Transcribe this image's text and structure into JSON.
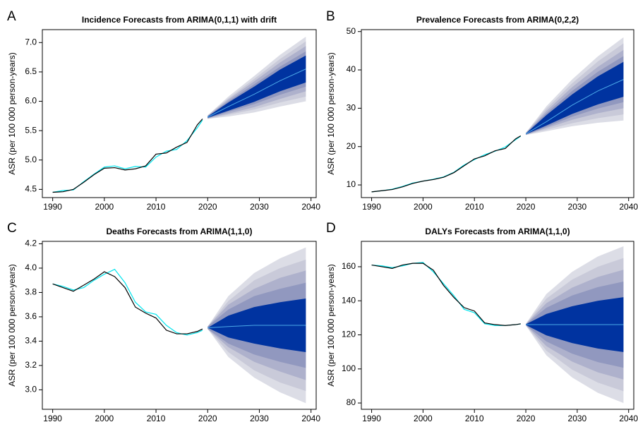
{
  "chart_data": [
    {
      "type": "fan",
      "label": "A",
      "title": "Incidence Forecasts from ARIMA(0,1,1) with drift",
      "y_label": "ASR (per 100 000 person-years)",
      "xlim": [
        1988,
        2041
      ],
      "xticks": [
        1990,
        2000,
        2010,
        2020,
        2030,
        2040
      ],
      "ylim": [
        4.36,
        7.22
      ],
      "yticks": [
        4.5,
        {
          "value": 5,
          "label": "5.0"
        },
        5.5,
        {
          "value": 6,
          "label": "6.0"
        },
        6.5,
        {
          "value": 7,
          "label": "7.0"
        }
      ],
      "x": [
        1990,
        1992,
        1994,
        1996,
        1998,
        2000,
        2002,
        2004,
        2006,
        2008,
        2010,
        2012,
        2014,
        2016,
        2018,
        2019
      ],
      "series": [
        {
          "color": "#000000",
          "values": [
            4.45,
            4.46,
            4.5,
            4.62,
            4.75,
            4.86,
            4.87,
            4.83,
            4.85,
            4.9,
            5.1,
            5.12,
            5.22,
            5.3,
            5.6,
            5.7
          ]
        },
        {
          "color": "#00e5ee",
          "values": [
            4.45,
            4.48,
            4.49,
            4.63,
            4.76,
            4.88,
            4.9,
            4.85,
            4.89,
            4.88,
            5.05,
            5.15,
            5.18,
            5.33,
            5.55,
            5.68
          ]
        }
      ],
      "forecast": {
        "x": [
          2020,
          2024,
          2029,
          2034,
          2039
        ],
        "color": "#4aa8e8",
        "mean": [
          5.73,
          5.91,
          6.12,
          6.35,
          6.55
        ],
        "bands": [
          {
            "color": "#dcdde6",
            "lower": [
              5.7,
              5.74,
              5.81,
              5.91,
              6.0
            ],
            "upper": [
              5.76,
              6.08,
              6.43,
              6.79,
              7.1
            ]
          },
          {
            "color": "#c9cad9",
            "lower": [
              5.7,
              5.77,
              5.86,
              5.98,
              6.08
            ],
            "upper": [
              5.76,
              6.05,
              6.38,
              6.72,
              7.02
            ]
          },
          {
            "color": "#aeb1cc",
            "lower": [
              5.71,
              5.79,
              5.9,
              6.04,
              6.17
            ],
            "upper": [
              5.75,
              6.03,
              6.34,
              6.66,
              6.94
            ]
          },
          {
            "color": "#9198bf",
            "lower": [
              5.71,
              5.82,
              5.95,
              6.11,
              6.25
            ],
            "upper": [
              5.75,
              6.0,
              6.29,
              6.59,
              6.85
            ]
          },
          {
            "color": "#0033a0",
            "lower": [
              5.72,
              5.84,
              5.99,
              6.17,
              6.32
            ],
            "upper": [
              5.74,
              5.98,
              6.25,
              6.54,
              6.78
            ]
          }
        ]
      }
    },
    {
      "type": "fan",
      "label": "B",
      "title": "Prevalence Forecasts from ARIMA(0,2,2)",
      "y_label": "ASR (per 100 000 person-years)",
      "xlim": [
        1988,
        2041
      ],
      "xticks": [
        1990,
        2000,
        2010,
        2020,
        2030,
        2040
      ],
      "ylim": [
        6.7,
        50.5
      ],
      "yticks": [
        10,
        20,
        30,
        40,
        50
      ],
      "x": [
        1990,
        1992,
        1994,
        1996,
        1998,
        2000,
        2002,
        2004,
        2006,
        2008,
        2010,
        2012,
        2014,
        2016,
        2018,
        2019
      ],
      "series": [
        {
          "color": "#000000",
          "values": [
            8.2,
            8.5,
            8.8,
            9.5,
            10.4,
            11.0,
            11.4,
            12.0,
            13.2,
            15.0,
            16.8,
            17.6,
            18.9,
            19.5,
            22.0,
            22.8
          ]
        },
        {
          "color": "#00e5ee",
          "values": [
            8.2,
            8.5,
            8.9,
            9.6,
            10.5,
            11.0,
            11.5,
            12.1,
            13.3,
            15.2,
            16.6,
            17.9,
            18.8,
            19.9,
            21.8,
            22.7
          ]
        }
      ],
      "forecast": {
        "x": [
          2020,
          2024,
          2029,
          2034,
          2039
        ],
        "color": "#4aa8e8",
        "mean": [
          23.3,
          26.5,
          30.8,
          34.5,
          37.5
        ],
        "bands": [
          {
            "color": "#dcdde6",
            "lower": [
              23.0,
              24.0,
              25.3,
              26.2,
              26.8
            ],
            "upper": [
              23.6,
              30.5,
              37.5,
              43.5,
              48.5
            ]
          },
          {
            "color": "#c9cad9",
            "lower": [
              23.1,
              24.4,
              26.1,
              27.4,
              28.4
            ],
            "upper": [
              23.6,
              29.9,
              36.5,
              42.2,
              46.9
            ]
          },
          {
            "color": "#aeb1cc",
            "lower": [
              23.1,
              24.8,
              27.0,
              28.7,
              30.0
            ],
            "upper": [
              23.5,
              29.3,
              35.5,
              40.8,
              45.2
            ]
          },
          {
            "color": "#9198bf",
            "lower": [
              23.1,
              25.1,
              27.8,
              29.9,
              31.6
            ],
            "upper": [
              23.5,
              28.7,
              34.5,
              39.5,
              43.6
            ]
          },
          {
            "color": "#0033a0",
            "lower": [
              23.2,
              25.5,
              28.5,
              31.0,
              33.0
            ],
            "upper": [
              23.4,
              28.2,
              33.6,
              38.3,
              42.1
            ]
          }
        ]
      }
    },
    {
      "type": "fan",
      "label": "C",
      "title": "Deaths Forecasts from ARIMA(1,1,0)",
      "y_label": "ASR (per 100 000 person-years)",
      "xlim": [
        1988,
        2041
      ],
      "xticks": [
        1990,
        2000,
        2010,
        2020,
        2030,
        2040
      ],
      "ylim": [
        2.84,
        4.22
      ],
      "yticks": [
        {
          "value": 3,
          "label": "3.0"
        },
        3.2,
        3.4,
        3.6,
        3.8,
        {
          "value": 4,
          "label": "4.0"
        },
        4.2
      ],
      "x": [
        1990,
        1992,
        1994,
        1996,
        1998,
        2000,
        2002,
        2004,
        2006,
        2008,
        2010,
        2012,
        2014,
        2016,
        2018,
        2019
      ],
      "series": [
        {
          "color": "#000000",
          "values": [
            3.87,
            3.84,
            3.81,
            3.86,
            3.91,
            3.97,
            3.93,
            3.84,
            3.68,
            3.63,
            3.59,
            3.49,
            3.46,
            3.46,
            3.48,
            3.5
          ]
        },
        {
          "color": "#00e5ee",
          "values": [
            3.87,
            3.85,
            3.82,
            3.84,
            3.9,
            3.95,
            3.99,
            3.88,
            3.72,
            3.64,
            3.62,
            3.53,
            3.47,
            3.45,
            3.47,
            3.49
          ]
        }
      ],
      "forecast": {
        "x": [
          2020,
          2024,
          2029,
          2034,
          2039
        ],
        "color": "#4aa8e8",
        "mean": [
          3.51,
          3.52,
          3.53,
          3.53,
          3.53
        ],
        "bands": [
          {
            "color": "#dcdde6",
            "lower": [
              3.5,
              3.27,
              3.1,
              2.98,
              2.89
            ],
            "upper": [
              3.52,
              3.77,
              3.96,
              4.08,
              4.17
            ]
          },
          {
            "color": "#c9cad9",
            "lower": [
              3.5,
              3.31,
              3.16,
              3.06,
              2.99
            ],
            "upper": [
              3.52,
              3.73,
              3.9,
              4.0,
              4.07
            ]
          },
          {
            "color": "#aeb1cc",
            "lower": [
              3.5,
              3.35,
              3.23,
              3.15,
              3.08
            ],
            "upper": [
              3.52,
              3.7,
              3.83,
              3.92,
              3.98
            ]
          },
          {
            "color": "#9198bf",
            "lower": [
              3.5,
              3.38,
              3.29,
              3.23,
              3.18
            ],
            "upper": [
              3.52,
              3.66,
              3.77,
              3.83,
              3.88
            ]
          },
          {
            "color": "#0033a0",
            "lower": [
              3.51,
              3.43,
              3.38,
              3.34,
              3.31
            ],
            "upper": [
              3.51,
              3.61,
              3.68,
              3.72,
              3.75
            ]
          }
        ]
      }
    },
    {
      "type": "fan",
      "label": "D",
      "title": "DALYs Forecasts from ARIMA(1,1,0)",
      "y_label": "ASR (per 100 000 person-years)",
      "xlim": [
        1988,
        2041
      ],
      "xticks": [
        1990,
        2000,
        2010,
        2020,
        2030,
        2040
      ],
      "ylim": [
        76.3,
        174.9
      ],
      "yticks": [
        80,
        100,
        120,
        140,
        160
      ],
      "x": [
        1990,
        1992,
        1994,
        1996,
        1998,
        2000,
        2002,
        2004,
        2006,
        2008,
        2010,
        2012,
        2014,
        2016,
        2018,
        2019
      ],
      "series": [
        {
          "color": "#000000",
          "values": [
            161,
            160,
            159,
            161,
            162,
            162,
            158,
            149,
            142,
            136,
            134,
            127,
            126,
            125.5,
            126,
            126.5
          ]
        },
        {
          "color": "#00e5ee",
          "values": [
            161,
            160.5,
            159.5,
            160.5,
            162,
            162.5,
            157,
            150,
            143,
            135,
            133,
            126.5,
            125.5,
            125.5,
            126,
            126.4
          ]
        }
      ],
      "forecast": {
        "x": [
          2020,
          2024,
          2029,
          2034,
          2039
        ],
        "color": "#4aa8e8",
        "mean": [
          126,
          126,
          126,
          126,
          126
        ],
        "bands": [
          {
            "color": "#dcdde6",
            "lower": [
              125.5,
              108,
              95,
              86,
              80
            ],
            "upper": [
              126.5,
              144,
              157,
              166,
              172
            ]
          },
          {
            "color": "#c9cad9",
            "lower": [
              125.6,
              110.7,
              99.6,
              92,
              86.9
            ],
            "upper": [
              126.4,
              141.3,
              152.4,
              160,
              165.1
            ]
          },
          {
            "color": "#aeb1cc",
            "lower": [
              125.65,
              113.4,
              104.3,
              98,
              93.8
            ],
            "upper": [
              126.35,
              138.6,
              147.7,
              154,
              158.2
            ]
          },
          {
            "color": "#9198bf",
            "lower": [
              125.7,
              116.1,
              109,
              104,
              100.7
            ],
            "upper": [
              126.3,
              135.9,
              143.1,
              148,
              151.3
            ]
          },
          {
            "color": "#0033a0",
            "lower": [
              125.8,
              119.7,
              115.2,
              112,
              109.9
            ],
            "upper": [
              126.2,
              132.3,
              136.8,
              140,
              142.1
            ]
          }
        ]
      }
    }
  ]
}
